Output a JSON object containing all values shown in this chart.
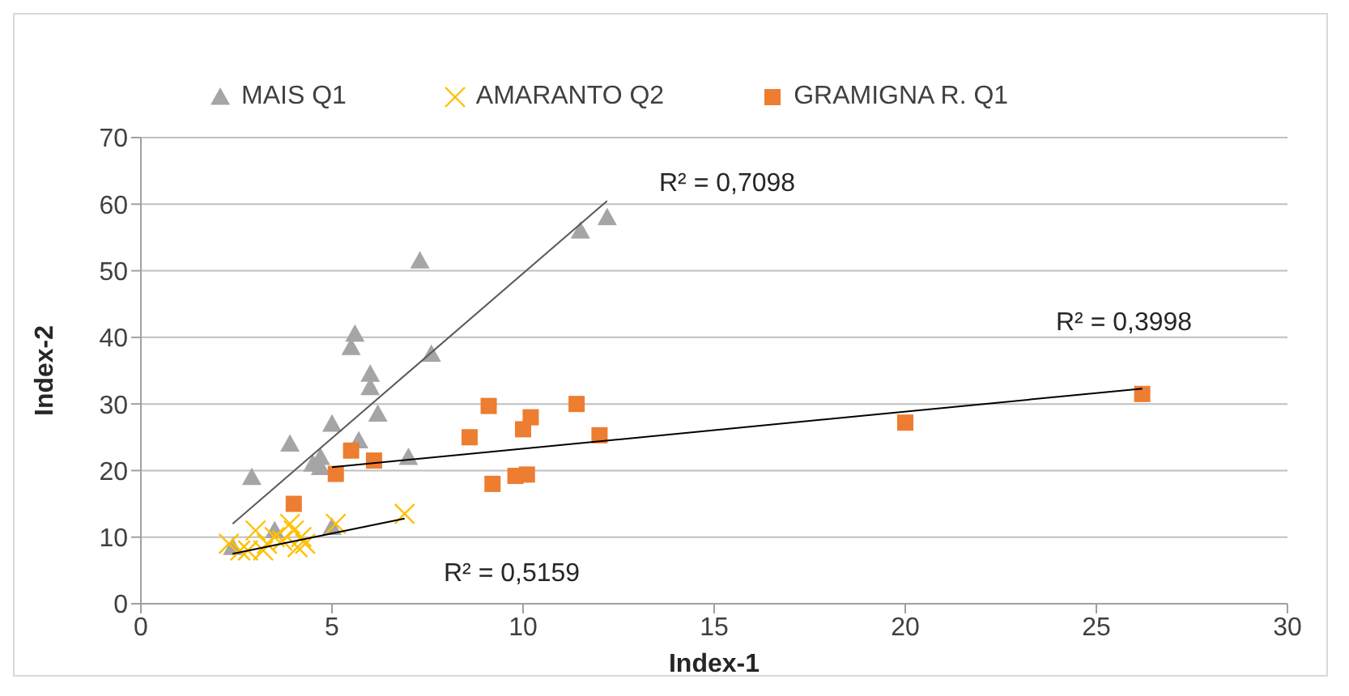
{
  "chart_data": {
    "type": "scatter",
    "xlabel": "Index-1",
    "ylabel": "Index-2",
    "xlim": [
      0,
      30
    ],
    "xticks": [
      0,
      5,
      10,
      15,
      20,
      25,
      30
    ],
    "ylim": [
      0,
      70
    ],
    "yticks": [
      0,
      10,
      20,
      30,
      40,
      50,
      60,
      70
    ],
    "grid": "y",
    "legend": "top left",
    "series": [
      {
        "name": "MAIS Q1",
        "color": "#a5a5a5",
        "marker": "triangle",
        "x": [
          2.4,
          2.9,
          3.5,
          3.9,
          4.5,
          4.7,
          4.7,
          5.0,
          5.0,
          5.5,
          5.6,
          5.7,
          6.0,
          6.0,
          6.2,
          7.0,
          7.3,
          7.6,
          11.5,
          12.2
        ],
        "values": [
          8.5,
          19,
          11,
          24,
          21,
          22,
          20.5,
          27,
          11.5,
          38.5,
          40.5,
          24.5,
          34.5,
          32.5,
          28.5,
          22,
          51.5,
          37.5,
          56,
          58
        ]
      },
      {
        "name": "AMARANTO Q2",
        "color": "#ffc000",
        "marker": "cross",
        "x": [
          2.3,
          2.6,
          2.8,
          3.0,
          3.2,
          3.3,
          3.5,
          3.7,
          3.9,
          4.0,
          4.1,
          4.2,
          4.3,
          5.1,
          6.9
        ],
        "values": [
          9,
          8,
          8,
          11,
          8,
          9,
          10,
          9.5,
          12,
          11,
          8.5,
          10,
          9,
          12,
          13.5
        ]
      },
      {
        "name": "GRAMIGNA R. Q1",
        "color": "#ed7d31",
        "marker": "square",
        "x": [
          4.0,
          5.1,
          5.5,
          6.1,
          8.6,
          9.1,
          9.2,
          9.8,
          10.0,
          10.1,
          10.2,
          11.4,
          12.0,
          20.0,
          26.2
        ],
        "values": [
          15,
          19.5,
          23,
          21.5,
          25,
          29.7,
          18,
          19.2,
          26.2,
          19.4,
          28,
          30,
          25.3,
          27.2,
          31.5
        ]
      },
      {
        "type": "line",
        "color": "#595959",
        "x": [
          2.4,
          12.2
        ],
        "values": [
          12,
          60.5
        ]
      },
      {
        "type": "line",
        "color": "#000000",
        "x": [
          2.4,
          6.9
        ],
        "values": [
          7.5,
          12.8
        ]
      },
      {
        "type": "line",
        "color": "#000000",
        "x": [
          5.0,
          26.2
        ],
        "values": [
          20.5,
          32.3
        ]
      }
    ],
    "annotations": [
      "R² = 0,7098",
      "R² = 0,3998",
      "R² = 0,5159"
    ]
  }
}
